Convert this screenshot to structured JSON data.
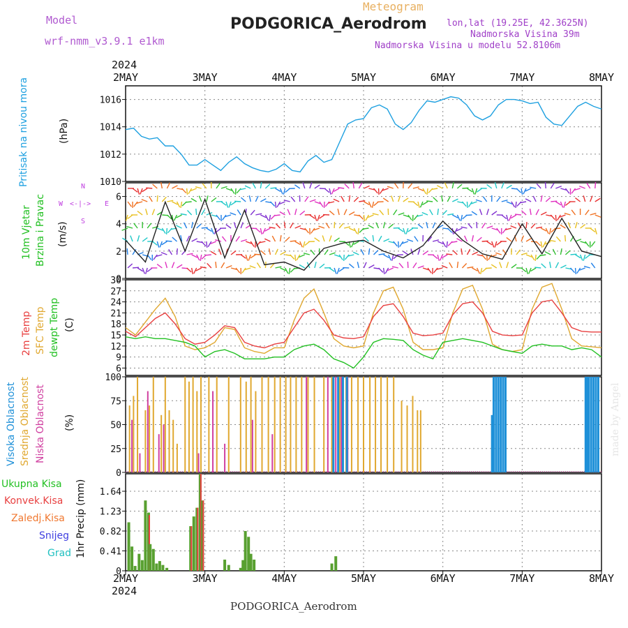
{
  "header": {
    "model_label": "Model",
    "model_name": "wrf-nmm_v3.9.1 e1km",
    "subtitle": "Meteogram",
    "title": "PODGORICA_Aerodrom",
    "lonlat": "lon,lat (19.25E, 42.3625N)",
    "altitude": "Nadmorska Visina 39m",
    "model_altitude": "Nadmorska Visina u modelu 52.8106m"
  },
  "footer": {
    "station": "PODGORICA_Aerodrom",
    "credit": "made by Angel",
    "year": "2024"
  },
  "x_axis": {
    "year": "2024",
    "ticks": [
      "2MAY",
      "3MAY",
      "4MAY",
      "5MAY",
      "6MAY",
      "7MAY",
      "8MAY"
    ]
  },
  "colors": {
    "pressure": "#1ea0e0",
    "temp2m": "#e84040",
    "sfc_temp": "#e0a830",
    "dewpoint": "#22c022",
    "cloud_high": "#1e90d8",
    "cloud_mid": "#e0a830",
    "cloud_low": "#d040a0",
    "precip_total": "#58a030",
    "precip_conv": "#e84040",
    "snow": "#4040e0",
    "hail": "#20c0c0"
  },
  "legend_wind": {
    "compass_n": "N",
    "compass_w": "W",
    "compass_e": "E",
    "compass_s": "S",
    "compass_arrows": "<-|->"
  },
  "chart_data": [
    {
      "type": "line",
      "ylabel_1": "Pritisak na nivou mora",
      "ylabel_2": "(hPa)",
      "ylim": [
        1010,
        1017
      ],
      "yticks": [
        1010,
        1012,
        1014,
        1016
      ],
      "x": [
        0,
        0.1,
        0.2,
        0.3,
        0.4,
        0.5,
        0.6,
        0.7,
        0.8,
        0.9,
        1.0,
        1.1,
        1.2,
        1.3,
        1.4,
        1.5,
        1.6,
        1.7,
        1.8,
        1.9,
        2.0,
        2.1,
        2.2,
        2.3,
        2.4,
        2.5,
        2.6,
        2.7,
        2.8,
        2.9,
        3.0,
        3.1,
        3.2,
        3.3,
        3.4,
        3.5,
        3.6,
        3.7,
        3.8,
        3.9,
        4.0,
        4.1,
        4.2,
        4.3,
        4.4,
        4.5,
        4.6,
        4.7,
        4.8,
        4.9,
        5.0,
        5.1,
        5.2,
        5.3,
        5.4,
        5.5,
        5.6,
        5.7,
        5.8,
        5.9,
        6.0
      ],
      "series": [
        {
          "name": "pressure",
          "values": [
            1013.8,
            1013.9,
            1013.3,
            1013.1,
            1013.2,
            1012.6,
            1012.6,
            1012.0,
            1011.2,
            1011.2,
            1011.6,
            1011.2,
            1010.8,
            1011.4,
            1011.8,
            1011.3,
            1011.0,
            1010.8,
            1010.7,
            1010.9,
            1011.3,
            1010.8,
            1010.7,
            1011.5,
            1011.9,
            1011.4,
            1011.6,
            1012.9,
            1014.2,
            1014.5,
            1014.6,
            1015.4,
            1015.6,
            1015.3,
            1014.2,
            1013.8,
            1014.3,
            1015.2,
            1015.9,
            1015.8,
            1016.0,
            1016.2,
            1016.1,
            1015.6,
            1014.8,
            1014.5,
            1014.8,
            1015.6,
            1016.0,
            1016.0,
            1015.9,
            1015.7,
            1015.8,
            1014.7,
            1014.2,
            1014.1,
            1014.8,
            1015.5,
            1015.8,
            1015.5,
            1015.3
          ]
        }
      ]
    },
    {
      "type": "line",
      "ylabel_1": "10m Vjetar",
      "ylabel_2": "Brzina i Pravac",
      "ylabel_3": "(m/s)",
      "ylim": [
        0,
        7
      ],
      "yticks": [
        0,
        2,
        4,
        6
      ],
      "x": [
        0,
        0.25,
        0.5,
        0.75,
        1.0,
        1.25,
        1.5,
        1.75,
        2.0,
        2.25,
        2.5,
        2.75,
        3.0,
        3.25,
        3.5,
        3.75,
        4.0,
        4.25,
        4.5,
        4.75,
        5.0,
        5.25,
        5.5,
        5.75,
        6.0
      ],
      "series": [
        {
          "name": "wind_speed",
          "values": [
            2.8,
            1.2,
            5.6,
            2.0,
            5.8,
            1.5,
            5.0,
            1.0,
            1.2,
            0.6,
            2.2,
            2.6,
            2.8,
            2.0,
            1.5,
            2.4,
            4.2,
            2.8,
            1.8,
            1.4,
            4.0,
            1.8,
            4.4,
            2.0,
            1.6
          ]
        }
      ]
    },
    {
      "type": "line",
      "ylabel_1": "2m Temp",
      "ylabel_2": "SFC Temp",
      "ylabel_3": "dewpt Temp",
      "ylabel_4": "(C)",
      "ylim": [
        4,
        30
      ],
      "yticks": [
        6,
        9,
        12,
        15,
        18,
        21,
        24,
        27,
        30
      ],
      "x": [
        0,
        0.125,
        0.25,
        0.375,
        0.5,
        0.625,
        0.75,
        0.875,
        1.0,
        1.125,
        1.25,
        1.375,
        1.5,
        1.625,
        1.75,
        1.875,
        2.0,
        2.125,
        2.25,
        2.375,
        2.5,
        2.625,
        2.75,
        2.875,
        3.0,
        3.125,
        3.25,
        3.375,
        3.5,
        3.625,
        3.75,
        3.875,
        4.0,
        4.125,
        4.25,
        4.375,
        4.5,
        4.625,
        4.75,
        4.875,
        5.0,
        5.125,
        5.25,
        5.375,
        5.5,
        5.625,
        5.75,
        5.875,
        6.0
      ],
      "series": [
        {
          "name": "2m Temp",
          "values": [
            16,
            14.5,
            17,
            19.5,
            21,
            18,
            14,
            12.5,
            13,
            15,
            17.5,
            17,
            13,
            12,
            11.5,
            12.5,
            13,
            17,
            21,
            22,
            19,
            15,
            14.2,
            14,
            14.5,
            20,
            23,
            23.5,
            20,
            15.5,
            14.8,
            15,
            15.5,
            20.5,
            23.5,
            24,
            21,
            16,
            15,
            14.8,
            15,
            21,
            24,
            24.5,
            21,
            17,
            16,
            15.8,
            15.8
          ]
        },
        {
          "name": "SFC Temp",
          "values": [
            17,
            15,
            18.5,
            22,
            25,
            20,
            12,
            11,
            11.5,
            13,
            17,
            16.5,
            11.5,
            10.5,
            10,
            11.5,
            11.5,
            19,
            25,
            27.5,
            21,
            14,
            12,
            11.5,
            12,
            21,
            27,
            28,
            22,
            13,
            11,
            11,
            11.5,
            21,
            27.5,
            28.5,
            22,
            12.5,
            11,
            10.5,
            11,
            22,
            28,
            29,
            22,
            14,
            12,
            11.8,
            11.5
          ]
        },
        {
          "name": "dewpt Temp",
          "values": [
            14.5,
            14,
            14.5,
            14,
            14,
            13.5,
            13,
            12,
            9,
            10.5,
            11,
            10,
            8.5,
            8.5,
            8.5,
            9,
            9,
            11,
            12,
            12.5,
            11,
            8.5,
            7.5,
            6,
            9,
            13,
            14,
            13.8,
            13.5,
            11,
            9.5,
            8.5,
            13,
            13.5,
            14,
            13.5,
            13,
            12,
            11,
            10.5,
            10,
            12,
            12.5,
            12,
            12,
            11,
            11.5,
            11,
            9
          ]
        }
      ]
    },
    {
      "type": "bar",
      "ylabel_1": "Visoka Oblacnost",
      "ylabel_2": "Srednja Oblacnost",
      "ylabel_3": "Niska Oblacnost",
      "ylabel_4": "(%)",
      "ylim": [
        0,
        100
      ],
      "yticks": [
        0,
        25,
        50,
        75,
        100
      ],
      "series": [
        {
          "name": "Srednja Oblacnost",
          "x": [
            0.05,
            0.1,
            0.15,
            0.25,
            0.3,
            0.35,
            0.45,
            0.5,
            0.55,
            0.6,
            0.65,
            0.75,
            0.8,
            0.85,
            0.9,
            0.95,
            1.05,
            1.15,
            1.3,
            1.45,
            1.52,
            1.58,
            1.64,
            1.72,
            1.8,
            1.88,
            1.95,
            2.02,
            2.08,
            2.15,
            2.22,
            2.3,
            2.38,
            2.5,
            2.6,
            2.7,
            2.78,
            2.85,
            2.93,
            3.0,
            3.08,
            3.15,
            3.22,
            3.3,
            3.38,
            3.48,
            3.55,
            3.62,
            3.68,
            3.72
          ],
          "values": [
            70,
            80,
            100,
            65,
            70,
            100,
            60,
            100,
            65,
            55,
            30,
            100,
            95,
            100,
            85,
            100,
            100,
            100,
            100,
            100,
            95,
            100,
            85,
            100,
            100,
            100,
            100,
            100,
            100,
            100,
            100,
            100,
            100,
            100,
            100,
            100,
            100,
            100,
            100,
            100,
            100,
            100,
            100,
            100,
            100,
            75,
            70,
            80,
            65,
            65
          ]
        },
        {
          "name": "Niska Oblacnost",
          "x": [
            0.08,
            0.18,
            0.28,
            0.42,
            0.48,
            0.92,
            1.1,
            1.25,
            1.6,
            1.85,
            2.28,
            2.55,
            2.65,
            2.72,
            2.8
          ],
          "values": [
            55,
            20,
            85,
            40,
            50,
            20,
            85,
            30,
            55,
            40,
            100,
            100,
            100,
            100,
            100
          ]
        },
        {
          "name": "Visoka Oblacnost",
          "x": [
            2.62,
            2.68,
            2.74,
            2.79,
            4.62,
            4.64,
            4.67,
            4.7,
            4.73,
            4.76,
            4.79,
            5.8,
            5.82,
            5.84,
            5.87,
            5.9,
            5.93,
            5.96
          ],
          "values": [
            100,
            100,
            100,
            100,
            60,
            100,
            100,
            100,
            100,
            100,
            100,
            100,
            100,
            100,
            100,
            100,
            100,
            100
          ]
        }
      ]
    },
    {
      "type": "bar",
      "legend": [
        "Ukupna Kisa",
        "Konvek.Kisa",
        "Zaledj.Kisa",
        "Snijeg",
        "Grad"
      ],
      "ylabel": "1hr Precip (mm)",
      "ylim": [
        0,
        2.0
      ],
      "yticks": [
        0,
        0.41,
        0.82,
        1.23,
        1.64
      ],
      "x": [
        0.04,
        0.08,
        0.12,
        0.17,
        0.21,
        0.25,
        0.29,
        0.31,
        0.35,
        0.39,
        0.43,
        0.47,
        0.52,
        0.82,
        0.86,
        0.9,
        0.94,
        0.97,
        1.25,
        1.3,
        1.45,
        1.48,
        1.51,
        1.55,
        1.58,
        1.62,
        2.6,
        2.65
      ],
      "series": [
        {
          "name": "Ukupna Kisa",
          "values": [
            1.0,
            0.5,
            0.1,
            0.35,
            0.22,
            1.45,
            1.2,
            0.55,
            0.45,
            0.15,
            0.2,
            0.12,
            0.06,
            0.92,
            1.12,
            1.3,
            2.0,
            1.45,
            0.23,
            0.12,
            0.06,
            0.22,
            0.82,
            0.7,
            0.35,
            0.23,
            0.15,
            0.3
          ]
        },
        {
          "name": "Konvek.Kisa",
          "values": [
            0.0,
            0.0,
            0.0,
            0.0,
            0.0,
            0.0,
            1.15,
            0.0,
            0.0,
            0.0,
            0.0,
            0.0,
            0.0,
            0.92,
            0.0,
            1.3,
            2.0,
            1.45,
            0.0,
            0.0,
            0.0,
            0.0,
            0.0,
            0.0,
            0.0,
            0.0,
            0.0,
            0.0
          ]
        }
      ]
    }
  ]
}
